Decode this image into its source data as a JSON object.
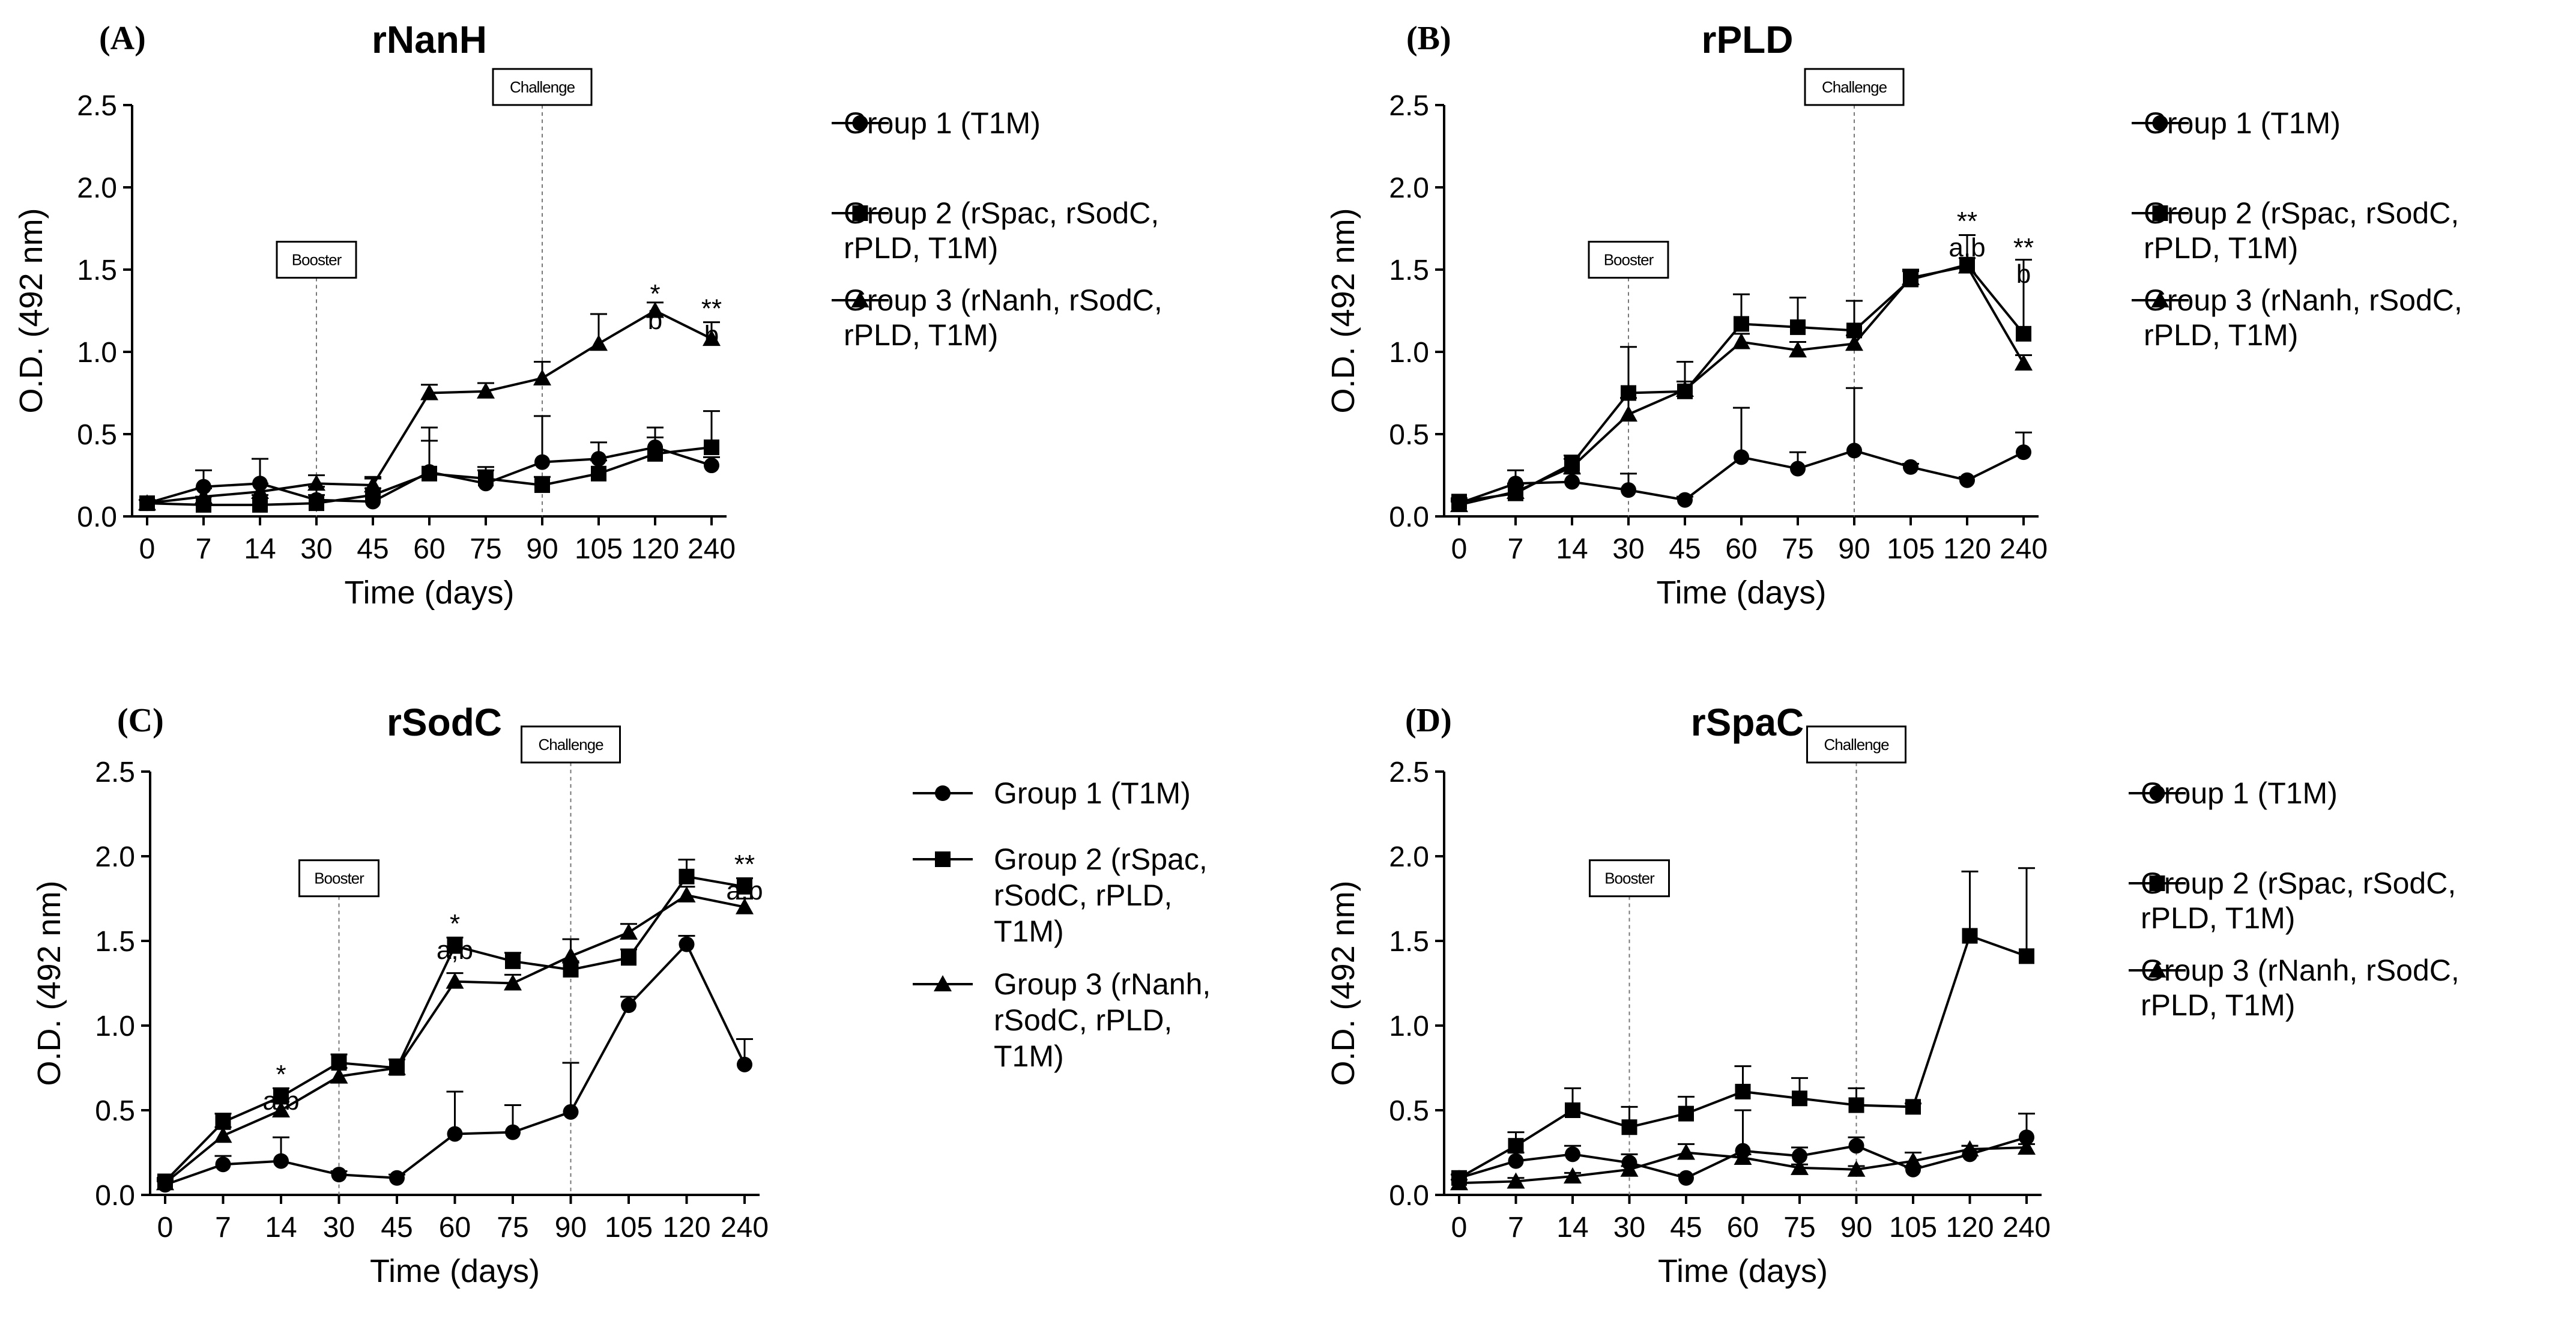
{
  "figure": {
    "background": "#ffffff",
    "ink": "#000000"
  },
  "chart_data": [
    {
      "type": "line",
      "panel": "(A)",
      "title": "rNanH",
      "xlabel": "Time (days)",
      "ylabel": "O.D. (492 nm)",
      "categories": [
        "0",
        "7",
        "14",
        "30",
        "45",
        "60",
        "75",
        "90",
        "105",
        "120",
        "240"
      ],
      "ylim": [
        0,
        2.5
      ],
      "yticks": [
        "0.0",
        "0.5",
        "1.0",
        "1.5",
        "2.0",
        "2.5"
      ],
      "events": [
        {
          "label": "Booster",
          "category": "30",
          "box_y": 1.56
        },
        {
          "label": "Challenge",
          "category": "90",
          "box_y": 2.61
        }
      ],
      "series": [
        {
          "name": "Group 1 (T1M)",
          "legend_lines": [
            "Group 1 (T1M)"
          ],
          "marker": "circle",
          "values": [
            0.08,
            0.18,
            0.2,
            0.1,
            0.09,
            0.27,
            0.2,
            0.33,
            0.35,
            0.42,
            0.31
          ],
          "errors": [
            0.02,
            0.1,
            0.15,
            0.08,
            0.08,
            0.27,
            0.1,
            0.28,
            0.1,
            0.12,
            0.05
          ]
        },
        {
          "name": "Group 2 (rSpac, rSodC, rPLD, T1M)",
          "legend_lines": [
            "Group 2 (rSpac, rSodC,",
            "rPLD, T1M)"
          ],
          "marker": "square",
          "values": [
            0.08,
            0.07,
            0.07,
            0.08,
            0.13,
            0.26,
            0.23,
            0.19,
            0.26,
            0.38,
            0.42
          ],
          "errors": [
            0.02,
            0.05,
            0.06,
            0.05,
            0.1,
            0.2,
            0.05,
            0.05,
            0.08,
            0.1,
            0.22
          ]
        },
        {
          "name": "Group 3 (rNanh, rSodC, rPLD, T1M)",
          "legend_lines": [
            "Group 3 (rNanh, rSodC,",
            "rPLD, T1M)"
          ],
          "marker": "triangle",
          "values": [
            0.08,
            0.12,
            0.15,
            0.2,
            0.19,
            0.75,
            0.76,
            0.84,
            1.05,
            1.25,
            1.08
          ],
          "errors": [
            0.02,
            0.05,
            0.05,
            0.05,
            0.05,
            0.05,
            0.05,
            0.1,
            0.18,
            0.05,
            0.1
          ]
        }
      ],
      "annotations": [
        {
          "category": "120",
          "lines": [
            "*",
            "b"
          ],
          "y": 1.3
        },
        {
          "category": "240",
          "lines": [
            "**",
            "b"
          ],
          "y": 1.21
        }
      ]
    },
    {
      "type": "line",
      "panel": "(B)",
      "title": "rPLD",
      "xlabel": "Time (days)",
      "ylabel": "O.D. (492 nm)",
      "categories": [
        "0",
        "7",
        "14",
        "30",
        "45",
        "60",
        "75",
        "90",
        "105",
        "120",
        "240"
      ],
      "ylim": [
        0,
        2.5
      ],
      "yticks": [
        "0.0",
        "0.5",
        "1.0",
        "1.5",
        "2.0",
        "2.5"
      ],
      "events": [
        {
          "label": "Booster",
          "category": "30",
          "box_y": 1.56
        },
        {
          "label": "Challenge",
          "category": "90",
          "box_y": 2.61
        }
      ],
      "series": [
        {
          "name": "Group 1 (T1M)",
          "legend_lines": [
            "Group 1 (T1M)"
          ],
          "marker": "circle",
          "values": [
            0.08,
            0.2,
            0.21,
            0.16,
            0.1,
            0.36,
            0.29,
            0.4,
            0.3,
            0.22,
            0.39
          ],
          "errors": [
            0.02,
            0.08,
            0.05,
            0.1,
            0.02,
            0.3,
            0.1,
            0.38,
            0.02,
            0.02,
            0.12
          ]
        },
        {
          "name": "Group 2 (rSpac, rSodC, rPLD, T1M)",
          "legend_lines": [
            "Group 2 (rSpac, rSodC,",
            "rPLD, T1M)"
          ],
          "marker": "square",
          "values": [
            0.09,
            0.14,
            0.32,
            0.75,
            0.76,
            1.17,
            1.15,
            1.13,
            1.44,
            1.53,
            1.11
          ],
          "errors": [
            0.02,
            0.05,
            0.05,
            0.28,
            0.18,
            0.18,
            0.18,
            0.18,
            0.05,
            0.18,
            0.45
          ]
        },
        {
          "name": "Group 3 (rNanh, rSodC, rPLD, T1M)",
          "legend_lines": [
            "Group 3 (rNanh, rSodC,",
            "rPLD, T1M)"
          ],
          "marker": "triangle",
          "values": [
            0.07,
            0.15,
            0.3,
            0.62,
            0.77,
            1.06,
            1.01,
            1.05,
            1.45,
            1.52,
            0.93
          ],
          "errors": [
            0.02,
            0.05,
            0.05,
            0.1,
            0.05,
            0.05,
            0.05,
            0.05,
            0.05,
            0.05,
            0.05
          ]
        }
      ],
      "annotations": [
        {
          "category": "120",
          "lines": [
            "**",
            "a,b"
          ],
          "y": 1.74
        },
        {
          "category": "240",
          "lines": [
            "**",
            "b"
          ],
          "y": 1.58
        }
      ]
    },
    {
      "type": "line",
      "panel": "(C)",
      "title": "rSodC",
      "xlabel": "Time (days)",
      "ylabel": "O.D. (492 nm)",
      "categories": [
        "0",
        "7",
        "14",
        "30",
        "45",
        "60",
        "75",
        "90",
        "105",
        "120",
        "240"
      ],
      "ylim": [
        0,
        2.5
      ],
      "yticks": [
        "0.0",
        "0.5",
        "1.0",
        "1.5",
        "2.0",
        "2.5"
      ],
      "events": [
        {
          "label": "Booster",
          "category": "30",
          "box_y": 1.87
        },
        {
          "label": "Challenge",
          "category": "90",
          "box_y": 2.66
        }
      ],
      "series": [
        {
          "name": "Group 1 (T1M)",
          "legend_lines": [
            "Group 1 (T1M)"
          ],
          "marker": "circle",
          "values": [
            0.06,
            0.18,
            0.2,
            0.12,
            0.1,
            0.36,
            0.37,
            0.49,
            1.12,
            1.48,
            0.77
          ],
          "errors": [
            0.02,
            0.05,
            0.14,
            0.02,
            0.02,
            0.25,
            0.16,
            0.29,
            0.05,
            0.05,
            0.15
          ]
        },
        {
          "name": "Group 2 (rSpac, rSodC, rPLD, T1M)",
          "legend_lines": [
            "Group 2 (rSpac,",
            "rSodC, rPLD,",
            "T1M)"
          ],
          "marker": "square",
          "values": [
            0.08,
            0.43,
            0.58,
            0.78,
            0.75,
            1.47,
            1.38,
            1.33,
            1.4,
            1.88,
            1.82
          ],
          "errors": [
            0.02,
            0.05,
            0.05,
            0.05,
            0.05,
            0.05,
            0.05,
            0.05,
            0.05,
            0.1,
            0.05
          ]
        },
        {
          "name": "Group 3 (rNanh, rSodC, rPLD, T1M)",
          "legend_lines": [
            "Group 3 (rNanh,",
            "rSodC, rPLD,",
            "T1M)"
          ],
          "marker": "triangle",
          "values": [
            0.07,
            0.35,
            0.5,
            0.7,
            0.75,
            1.26,
            1.25,
            1.41,
            1.55,
            1.77,
            1.7
          ],
          "errors": [
            0.02,
            0.05,
            0.05,
            0.05,
            0.05,
            0.05,
            0.05,
            0.1,
            0.05,
            0.05,
            0.05
          ]
        }
      ],
      "annotations": [
        {
          "category": "14",
          "lines": [
            "*",
            "a,b"
          ],
          "y": 0.66
        },
        {
          "category": "60",
          "lines": [
            "*",
            "a,b"
          ],
          "y": 1.55
        },
        {
          "category": "240",
          "lines": [
            "**",
            "a,b"
          ],
          "y": 1.9
        }
      ]
    },
    {
      "type": "line",
      "panel": "(D)",
      "title": "rSpaC",
      "xlabel": "Time (days)",
      "ylabel": "O.D. (492 nm)",
      "categories": [
        "0",
        "7",
        "14",
        "30",
        "45",
        "60",
        "75",
        "90",
        "105",
        "120",
        "240"
      ],
      "ylim": [
        0,
        2.5
      ],
      "yticks": [
        "0.0",
        "0.5",
        "1.0",
        "1.5",
        "2.0",
        "2.5"
      ],
      "events": [
        {
          "label": "Booster",
          "category": "30",
          "box_y": 1.87
        },
        {
          "label": "Challenge",
          "category": "90",
          "box_y": 2.66
        }
      ],
      "series": [
        {
          "name": "Group 1 (T1M)",
          "legend_lines": [
            "Group 1 (T1M)"
          ],
          "marker": "circle",
          "values": [
            0.1,
            0.2,
            0.24,
            0.19,
            0.1,
            0.26,
            0.23,
            0.29,
            0.15,
            0.24,
            0.34
          ],
          "errors": [
            0.02,
            0.05,
            0.05,
            0.05,
            0.02,
            0.24,
            0.05,
            0.05,
            0.02,
            0.05,
            0.14
          ]
        },
        {
          "name": "Group 2 (rSpac, rSodC, rPLD, T1M)",
          "legend_lines": [
            "Group 2 (rSpac, rSodC,",
            "rPLD, T1M)"
          ],
          "marker": "square",
          "values": [
            0.1,
            0.29,
            0.5,
            0.4,
            0.48,
            0.61,
            0.57,
            0.53,
            0.52,
            1.53,
            1.41
          ],
          "errors": [
            0.02,
            0.08,
            0.13,
            0.12,
            0.1,
            0.15,
            0.12,
            0.1,
            0.02,
            0.38,
            0.52
          ]
        },
        {
          "name": "Group 3 (rNanh, rSodC, rPLD, T1M)",
          "legend_lines": [
            "Group 3 (rNanh, rSodC,",
            "rPLD, T1M)"
          ],
          "marker": "triangle",
          "values": [
            0.07,
            0.08,
            0.11,
            0.15,
            0.25,
            0.22,
            0.16,
            0.15,
            0.2,
            0.27,
            0.28
          ],
          "errors": [
            0.02,
            0.02,
            0.02,
            0.02,
            0.05,
            0.02,
            0.02,
            0.02,
            0.05,
            0.02,
            0.02
          ]
        }
      ],
      "annotations": []
    }
  ]
}
